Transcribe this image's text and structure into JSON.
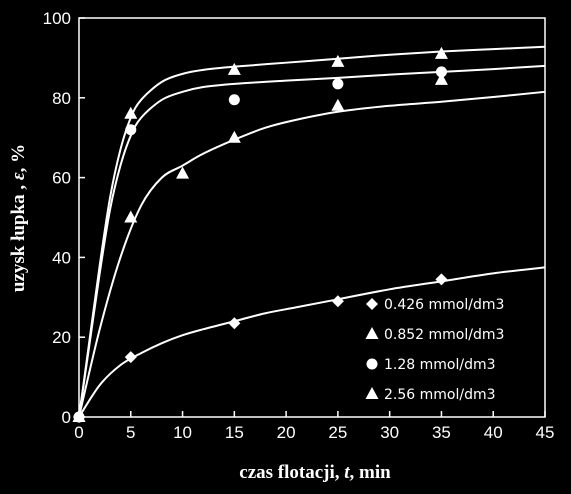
{
  "chart_data": {
    "type": "scatter",
    "xlabel_parts": [
      "czas flotacji, ",
      "t",
      ", min"
    ],
    "ylabel_parts": [
      "uzysk łupka , ",
      "ε",
      ", %"
    ],
    "xlim": [
      0,
      45
    ],
    "ylim": [
      0,
      100
    ],
    "xticks": [
      0,
      5,
      10,
      15,
      20,
      25,
      30,
      35,
      40,
      45
    ],
    "yticks": [
      0,
      20,
      40,
      60,
      80,
      100
    ],
    "grid": false,
    "legend_position": "bottom-right",
    "series": [
      {
        "name": "0.426 mmol/dm3",
        "marker": "diamond",
        "x": [
          0,
          5,
          15,
          25,
          35
        ],
        "y": [
          0,
          15,
          23.5,
          29,
          34.5
        ],
        "fit_x": [
          0,
          2,
          4,
          6,
          8,
          10,
          12,
          15,
          18,
          21,
          25,
          30,
          35,
          40,
          45
        ],
        "fit_y": [
          0,
          8,
          13,
          16,
          18.5,
          20.5,
          22,
          24,
          26,
          27.5,
          29.5,
          32,
          34,
          36,
          37.5
        ]
      },
      {
        "name": "0.852 mmol/dm3",
        "marker": "triangle",
        "x": [
          0,
          5,
          10,
          15,
          25,
          35
        ],
        "y": [
          0,
          50,
          61,
          70,
          78,
          84.5
        ],
        "fit_x": [
          0,
          2,
          4,
          6,
          8,
          10,
          12,
          15,
          18,
          21,
          25,
          30,
          35,
          40,
          45
        ],
        "fit_y": [
          0,
          22,
          40,
          53,
          60,
          63,
          66,
          69.5,
          72.5,
          74.5,
          76.5,
          78,
          79,
          80.2,
          81.5
        ]
      },
      {
        "name": "1.28 mmol/dm3",
        "marker": "circle",
        "x": [
          0,
          5,
          15,
          25,
          35
        ],
        "y": [
          0,
          72,
          79.5,
          83.5,
          86.5
        ],
        "fit_x": [
          0,
          1,
          2,
          3,
          4,
          5,
          6,
          8,
          10,
          12,
          15,
          20,
          25,
          30,
          35,
          40,
          45
        ],
        "fit_y": [
          0,
          18,
          36,
          52,
          63,
          70.5,
          75,
          79.5,
          81.5,
          82.7,
          83.5,
          84.3,
          85,
          85.8,
          86.5,
          87.2,
          88
        ]
      },
      {
        "name": "2.56 mmol/dm3",
        "marker": "triangle",
        "x": [
          0,
          5,
          15,
          25,
          35
        ],
        "y": [
          0,
          76,
          87,
          89,
          91
        ],
        "fit_x": [
          0,
          1,
          2,
          3,
          4,
          5,
          6,
          8,
          10,
          12,
          15,
          20,
          25,
          30,
          35,
          40,
          45
        ],
        "fit_y": [
          0,
          19,
          38,
          55,
          67,
          75,
          79.5,
          84,
          86,
          87,
          87.8,
          88.8,
          89.8,
          90.8,
          91.6,
          92.2,
          92.8
        ]
      }
    ]
  }
}
